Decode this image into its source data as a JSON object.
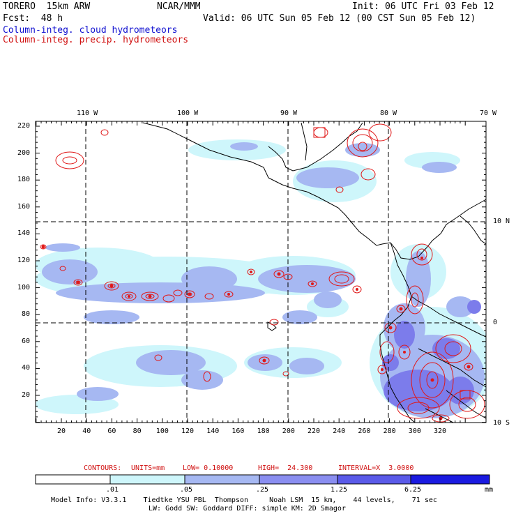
{
  "header": {
    "model": "TORERO  15km ARW",
    "org": "NCAR/MMM",
    "init": "Init: 06 UTC Fri 03 Feb 12",
    "fcst": "Fcst:  48 h",
    "valid": "Valid: 06 UTC Sun 05 Feb 12 (00 CST Sun 05 Feb 12)",
    "legend_cloud": "Column-integ. cloud hydrometeors",
    "legend_precip": "Column-integ. precip. hydrometeors"
  },
  "axes": {
    "top_lon": [
      "110 W",
      "100 W",
      "90 W",
      "80 W",
      "70 W"
    ],
    "right_lat": [
      "10 N",
      "0",
      "10 S"
    ],
    "left_y": [
      "220",
      "200",
      "180",
      "160",
      "140",
      "120",
      "100",
      "80",
      "60",
      "40",
      "20"
    ],
    "bottom_x": [
      "20",
      "40",
      "60",
      "80",
      "100",
      "120",
      "140",
      "160",
      "180",
      "200",
      "220",
      "240",
      "260",
      "280",
      "300",
      "320"
    ]
  },
  "contours": {
    "label": "CONTOURS:",
    "units": "UNITS=mm",
    "low": "LOW= 0.10000",
    "high": "HIGH=  24.300",
    "interval": "INTERVAL=X  3.0000"
  },
  "colorbar": {
    "labels": [
      ".01",
      ".05",
      ".25",
      "1.25",
      "6.25"
    ],
    "unit": "mm",
    "colors": [
      "#ffffff",
      "#cef6fb",
      "#a6b8f2",
      "#8a8ef0",
      "#5a5ae8",
      "#2a2ad8",
      "#0a0ae0"
    ]
  },
  "footer": {
    "line1": "Model Info: V3.3.1    Tiedtke YSU PBL  Thompson     Noah LSM  15 km,    44 levels,    71 sec",
    "line2": "LW: Godd SW: Goddard DIFF: simple KM: 2D Smagor"
  },
  "colors": {
    "cloud_light": "#cef6fb",
    "cloud_mid": "#a6b8f2",
    "cloud_dark": "#7c7ceb",
    "precip": "#e01818",
    "coast": "#000000"
  }
}
